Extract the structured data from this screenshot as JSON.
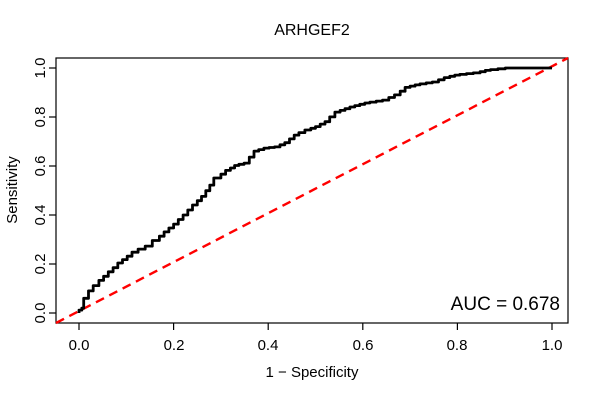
{
  "figure": {
    "title": "ARHGEF2",
    "xlabel": "1 − Specificity",
    "ylabel": "Sensitivity",
    "auc_label": "AUC = 0.678"
  },
  "chart_data": {
    "type": "line",
    "title": "ARHGEF2",
    "xlabel": "1 − Specificity",
    "ylabel": "Sensitivity",
    "xlim": [
      -0.04,
      1.04
    ],
    "ylim": [
      -0.04,
      1.04
    ],
    "grid": false,
    "legend": "none",
    "auc": 0.678,
    "x_ticks": [
      0.0,
      0.2,
      0.4,
      0.6,
      0.8,
      1.0
    ],
    "y_ticks": [
      0.0,
      0.2,
      0.4,
      0.6,
      0.8,
      1.0
    ],
    "x_tick_labels": [
      "0.0",
      "0.2",
      "0.4",
      "0.6",
      "0.8",
      "1.0"
    ],
    "y_tick_labels": [
      "0.0",
      "0.2",
      "0.4",
      "0.6",
      "0.8",
      "1.0"
    ],
    "series": [
      {
        "name": "ROC curve",
        "color": "#000000",
        "style": "solid",
        "interpolation": "step",
        "points": [
          [
            0.0,
            0.0
          ],
          [
            0.006,
            0.012
          ],
          [
            0.01,
            0.02
          ],
          [
            0.02,
            0.06
          ],
          [
            0.03,
            0.09
          ],
          [
            0.042,
            0.112
          ],
          [
            0.052,
            0.133
          ],
          [
            0.062,
            0.15
          ],
          [
            0.072,
            0.168
          ],
          [
            0.082,
            0.185
          ],
          [
            0.092,
            0.204
          ],
          [
            0.102,
            0.218
          ],
          [
            0.112,
            0.232
          ],
          [
            0.125,
            0.248
          ],
          [
            0.14,
            0.261
          ],
          [
            0.155,
            0.273
          ],
          [
            0.17,
            0.296
          ],
          [
            0.19,
            0.331
          ],
          [
            0.21,
            0.363
          ],
          [
            0.23,
            0.4
          ],
          [
            0.25,
            0.441
          ],
          [
            0.268,
            0.476
          ],
          [
            0.285,
            0.522
          ],
          [
            0.3,
            0.551
          ],
          [
            0.32,
            0.582
          ],
          [
            0.338,
            0.602
          ],
          [
            0.36,
            0.612
          ],
          [
            0.38,
            0.661
          ],
          [
            0.402,
            0.673
          ],
          [
            0.425,
            0.678
          ],
          [
            0.445,
            0.695
          ],
          [
            0.465,
            0.726
          ],
          [
            0.49,
            0.747
          ],
          [
            0.51,
            0.761
          ],
          [
            0.53,
            0.781
          ],
          [
            0.552,
            0.82
          ],
          [
            0.583,
            0.841
          ],
          [
            0.615,
            0.857
          ],
          [
            0.655,
            0.869
          ],
          [
            0.679,
            0.89
          ],
          [
            0.7,
            0.921
          ],
          [
            0.721,
            0.931
          ],
          [
            0.76,
            0.943
          ],
          [
            0.784,
            0.961
          ],
          [
            0.805,
            0.971
          ],
          [
            0.848,
            0.98
          ],
          [
            0.87,
            0.99
          ],
          [
            0.917,
            1.0
          ],
          [
            1.0,
            1.0
          ]
        ]
      },
      {
        "name": "chance diagonal",
        "color": "#FF0000",
        "style": "dashed",
        "interpolation": "linear",
        "points": [
          [
            0.0,
            0.0
          ],
          [
            1.0,
            1.0
          ]
        ]
      }
    ]
  },
  "colors": {
    "curve": "#000000",
    "diagonal": "#FF0000",
    "axis": "#000000",
    "background": "#FFFFFF"
  }
}
